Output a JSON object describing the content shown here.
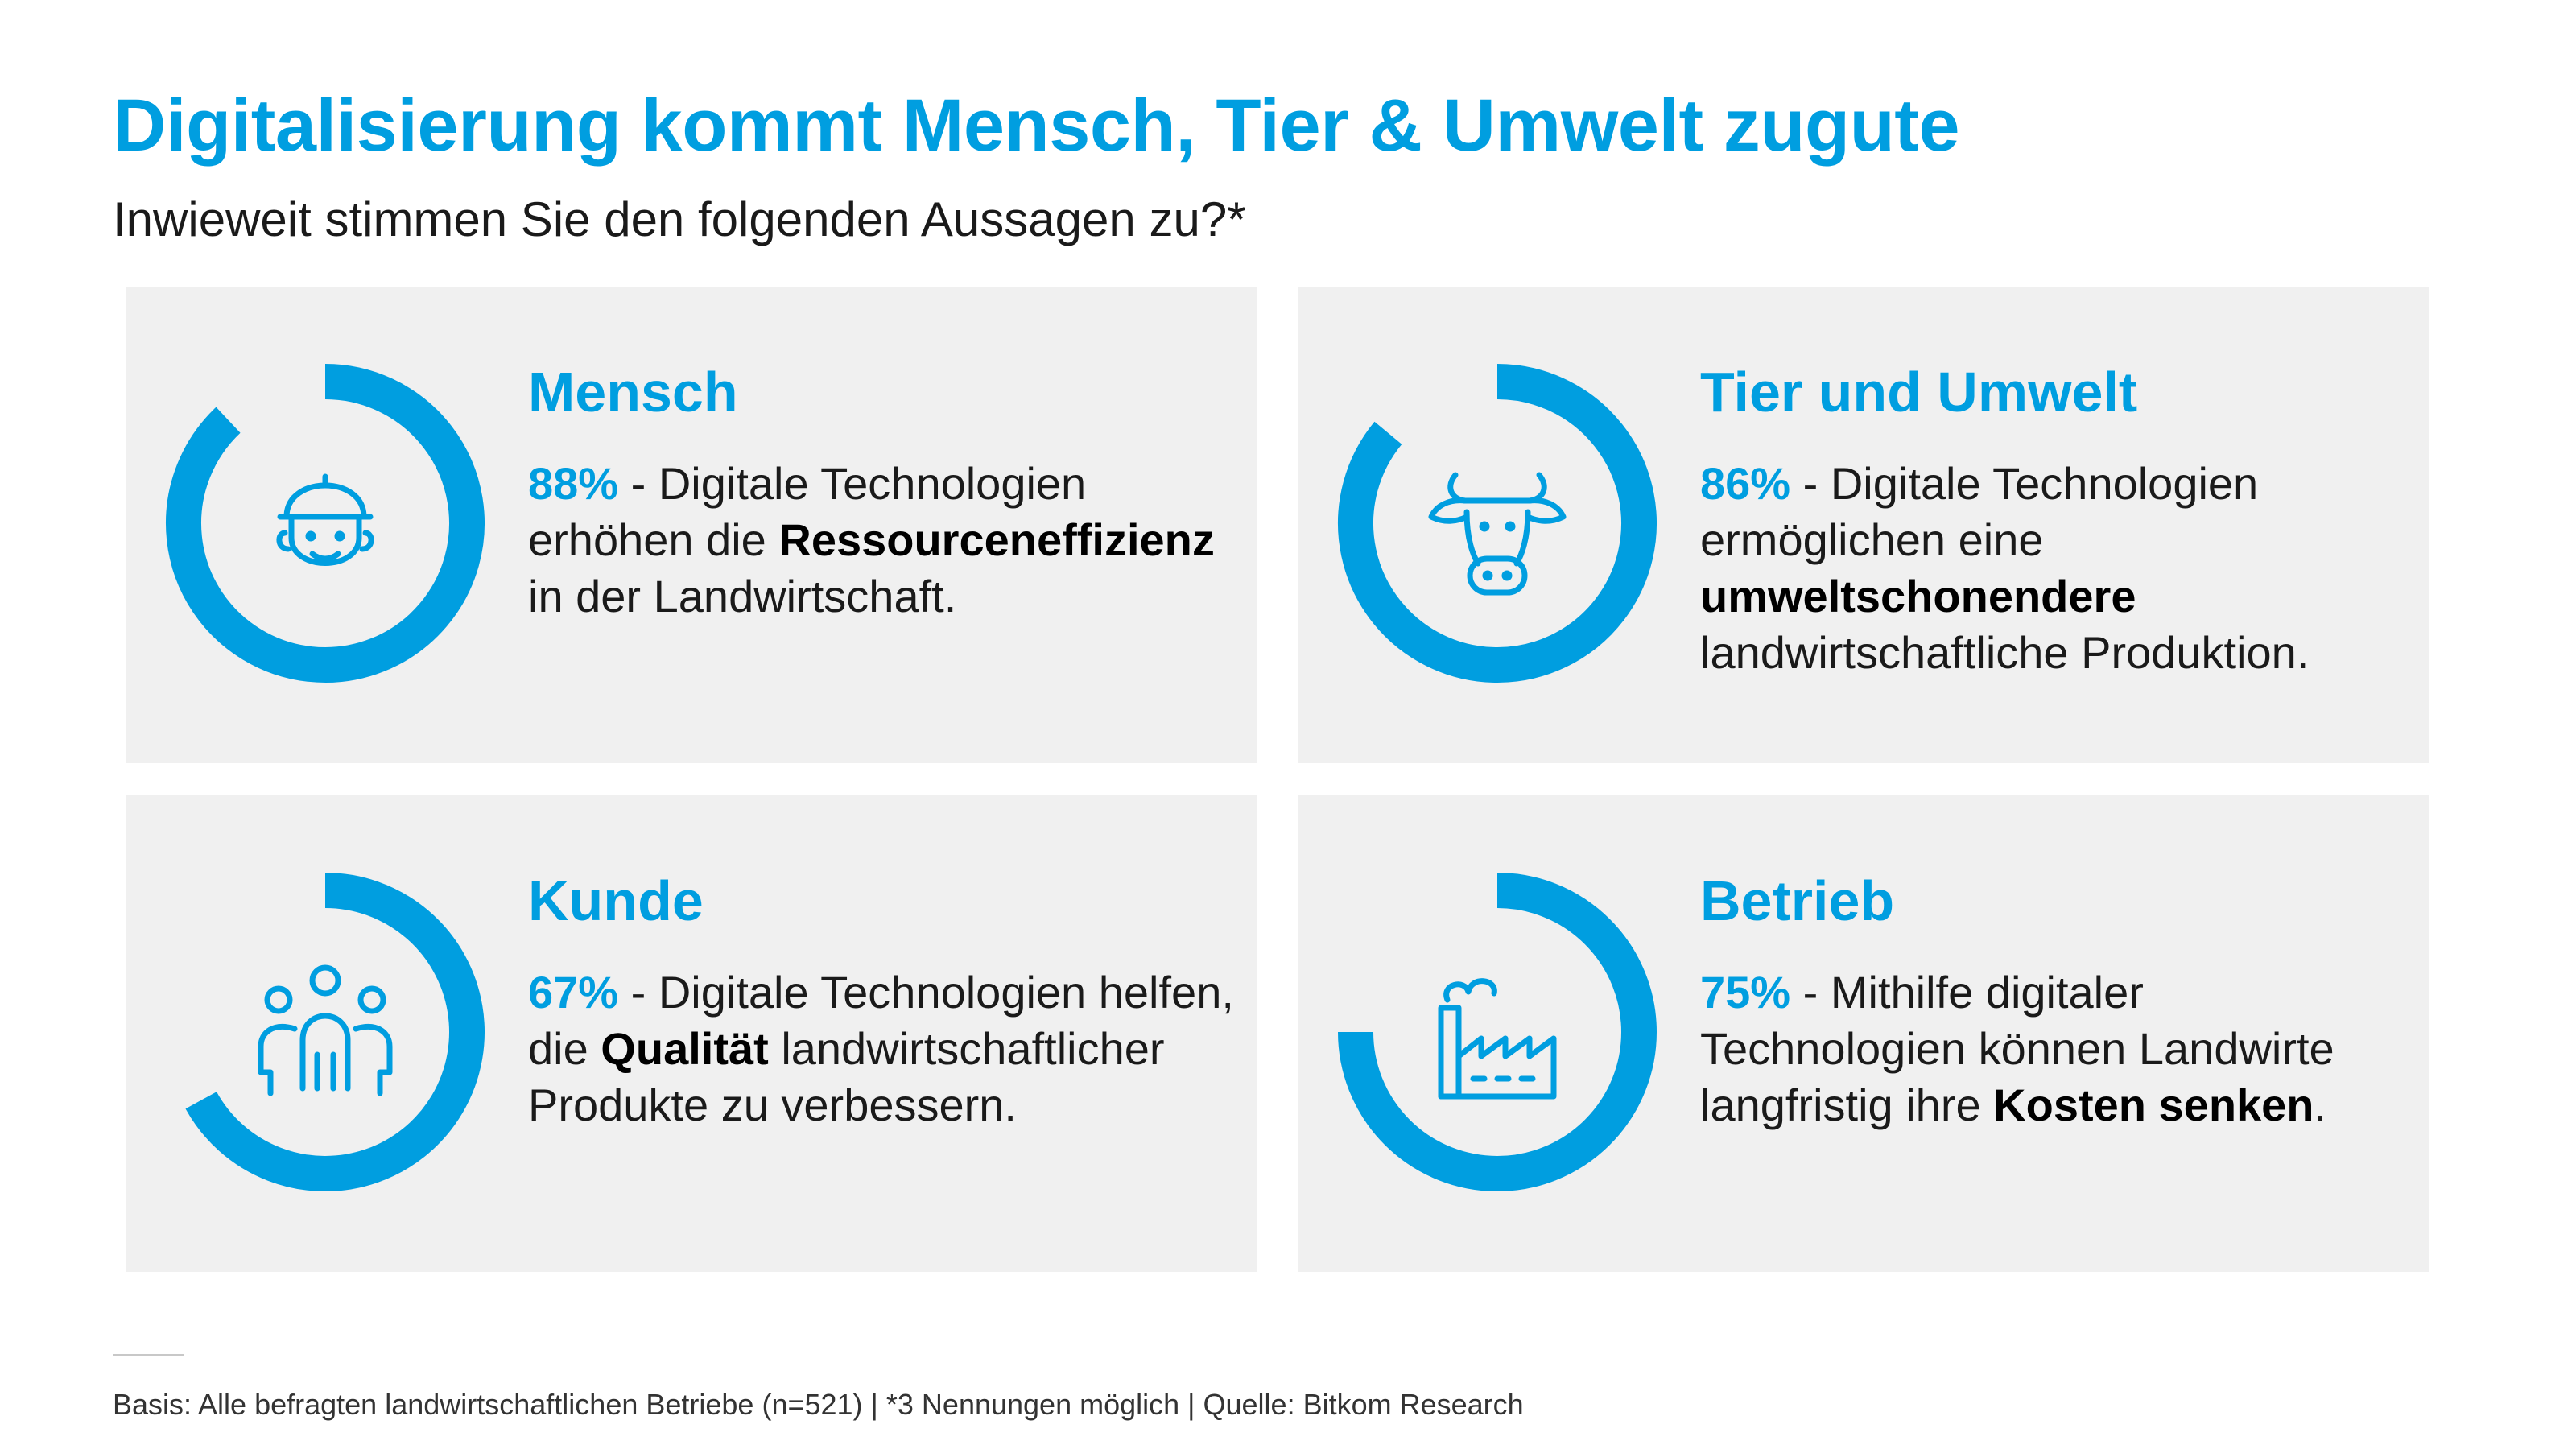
{
  "title": "Digitalisierung kommt Mensch, Tier & Umwelt zugute",
  "subtitle": "Inwieweit stimmen Sie den folgenden Aussagen zu?*",
  "accent_color": "#009ee0",
  "cards": [
    {
      "heading": "Mensch",
      "icon": "farmer-icon",
      "percent_label": "88%",
      "text_before": " - Digitale Technologien erhöhen die ",
      "bold_text": "Ressourceneffizienz",
      "text_after": " in der Landwirtschaft."
    },
    {
      "heading": "Tier und Umwelt",
      "icon": "cow-icon",
      "percent_label": "86%",
      "text_before": " - Digitale Technologien ermöglichen eine ",
      "bold_text": "umweltschonendere",
      "text_after": " landwirtschaftliche Produktion."
    },
    {
      "heading": "Kunde",
      "icon": "people-icon",
      "percent_label": "67%",
      "text_before": " - Digitale Technologien helfen, die ",
      "bold_text": "Qualität",
      "text_after": " landwirtschaftlicher Produkte zu verbessern."
    },
    {
      "heading": "Betrieb",
      "icon": "factory-icon",
      "percent_label": "75%",
      "text_before": " - Mithilfe digitaler Technologien können Landwirte langfristig ihre ",
      "bold_text": "Kosten senken",
      "text_after": "."
    }
  ],
  "chart_data": {
    "type": "donut",
    "categories": [
      "Mensch",
      "Tier und Umwelt",
      "Kunde",
      "Betrieb"
    ],
    "values": [
      88,
      86,
      67,
      75
    ],
    "unit": "%",
    "max": 100
  },
  "footnote": "Basis: Alle befragten landwirtschaftlichen Betriebe (n=521) | *3 Nennungen möglich | Quelle: Bitkom Research"
}
